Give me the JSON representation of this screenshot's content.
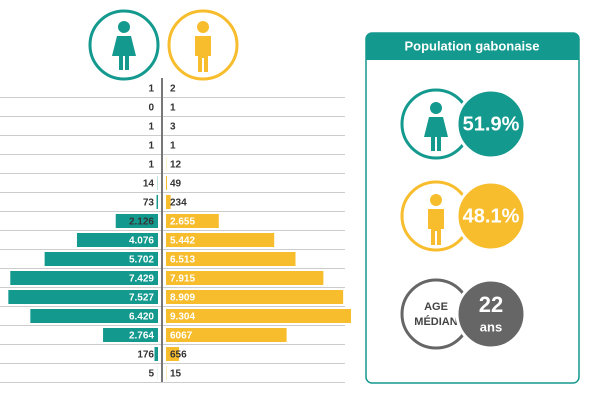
{
  "chart_data": {
    "type": "pyramid",
    "categories": [
      null,
      null,
      null,
      null,
      null,
      null,
      null,
      null,
      null,
      null,
      null,
      null,
      null,
      null,
      null,
      null
    ],
    "series": [
      {
        "color": "#14998f",
        "values": [
          1,
          0,
          1,
          1,
          1,
          14,
          73,
          2126,
          4076,
          5702,
          7429,
          7527,
          6420,
          2764,
          176,
          5
        ],
        "value_labels": [
          "1",
          "0",
          "1",
          "1",
          "1",
          "14",
          "73",
          "2.126",
          "4.076",
          "5.702",
          "7.429",
          "7.527",
          "6.420",
          "2.764",
          "176",
          "5"
        ]
      },
      {
        "color": "#f7bd2d",
        "values": [
          2,
          1,
          3,
          1,
          12,
          49,
          234,
          2655,
          5442,
          6513,
          7915,
          8909,
          9304,
          6067,
          656,
          15
        ],
        "value_labels": [
          "2",
          "1",
          "3",
          "1",
          "12",
          "49",
          "234",
          "2.655",
          "5.442",
          "6.513",
          "7.915",
          "8.909",
          "9.304",
          "6067",
          "656",
          "15"
        ]
      }
    ]
  },
  "panel": {
    "title": "Population gabonaise",
    "female_share": "51.9%",
    "male_share": "48.1%",
    "median_label": [
      "AGE",
      "MÉDIAN"
    ],
    "median_age": "22",
    "median_unit": "ans"
  }
}
